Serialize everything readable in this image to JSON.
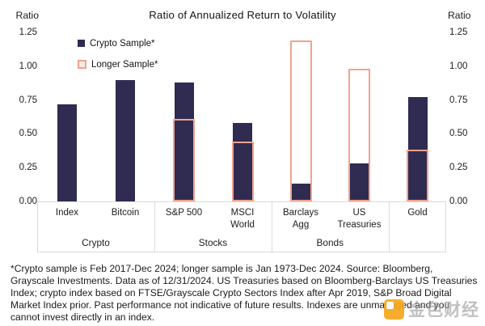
{
  "title": "Ratio of Annualized Return to Volatility",
  "axis": {
    "left_header": "Ratio",
    "right_header": "Ratio",
    "ticks": [
      "1.25",
      "1.00",
      "0.75",
      "0.50",
      "0.25",
      "0.00"
    ]
  },
  "legend": [
    {
      "label": "Crypto Sample*",
      "swatch": "filled-navy-square"
    },
    {
      "label": "Longer Sample*",
      "swatch": "outlined-salmon-square"
    }
  ],
  "chart_data": {
    "type": "bar",
    "title": "Ratio of Annualized Return to Volatility",
    "xlabel": "",
    "ylabel": "Ratio",
    "ylim": [
      0,
      1.25
    ],
    "grid": false,
    "legend_position": "top-left",
    "categories": [
      "Index",
      "Bitcoin",
      "S&P 500",
      "MSCI World",
      "Barclays Agg",
      "US Treasuries",
      "Gold"
    ],
    "categories_display": [
      [
        "Index"
      ],
      [
        "Bitcoin"
      ],
      [
        "S&P 500"
      ],
      [
        "MSCI",
        "World"
      ],
      [
        "Barclays",
        "Agg"
      ],
      [
        "US",
        "Treasuries"
      ],
      [
        "Gold"
      ]
    ],
    "groups": [
      {
        "label": "Crypto",
        "categories": [
          "Index",
          "Bitcoin"
        ]
      },
      {
        "label": "Stocks",
        "categories": [
          "S&P 500",
          "MSCI World"
        ]
      },
      {
        "label": "Bonds",
        "categories": [
          "Barclays Agg",
          "US Treasuries"
        ]
      },
      {
        "label": "",
        "categories": [
          "Gold"
        ]
      }
    ],
    "series": [
      {
        "name": "Crypto Sample*",
        "style": "filled",
        "color": "#2f2b51",
        "values": [
          0.72,
          0.9,
          0.88,
          0.58,
          0.13,
          0.28,
          0.77
        ]
      },
      {
        "name": "Longer Sample*",
        "style": "outline",
        "color": "#f1a38d",
        "values": [
          null,
          null,
          0.61,
          0.44,
          1.19,
          0.98,
          0.38
        ]
      }
    ]
  },
  "colors": {
    "crypto_sample": "#2f2b51",
    "longer_sample": "#f1a38d",
    "axis_line": "#dbdbdb",
    "text": "#1c1c1e",
    "watermark_orange": "#f6a71c"
  },
  "footnote_lines": [
    "*Crypto sample is Feb 2017-Dec 2024; longer sample is Jan 1973-Dec 2024. Source: Bloomberg,",
    "Grayscale Investments. Data as of 12/31/2024. US Treasuries based on Bloomberg-Barclays US Treasuries",
    "Index; crypto index based on FTSE/Grayscale Crypto Sectors Index after Apr 2019, S&P Broad Digital",
    "Market Index prior. Past performance not indicative of future results. Indexes are unmanaged and you",
    "cannot invest directly in an index."
  ],
  "watermark": {
    "logo": "jinse-logo",
    "text": "金色财经"
  }
}
